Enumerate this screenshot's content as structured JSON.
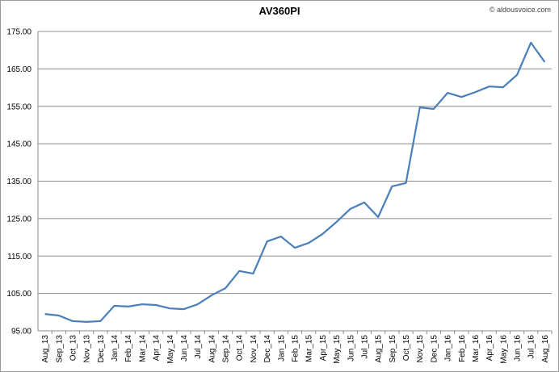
{
  "chart_data": {
    "type": "line",
    "title": "AV360PI",
    "credit": "© aldousvoice.com",
    "categories": [
      "Aug_13",
      "Sep_13",
      "Oct_13",
      "Nov_13",
      "Dec_13",
      "Jan_14",
      "Feb_14",
      "Mar_14",
      "Apr_14",
      "May_14",
      "Jun_14",
      "Jul_14",
      "Aug_14",
      "Sep_14",
      "Oct_14",
      "Nov_14",
      "Dec_14",
      "Jan_15",
      "Feb_15",
      "Mar_15",
      "Apr_15",
      "May_15",
      "Jun_15",
      "Jul_15",
      "Aug_15",
      "Sep_15",
      "Oct_15",
      "Nov_15",
      "Dec_15",
      "Jan_16",
      "Feb_16",
      "Mar_16",
      "Apr_16",
      "May_16",
      "Jun_16",
      "Jul_16",
      "Aug_16"
    ],
    "values": [
      99.5,
      99.1,
      97.6,
      97.4,
      97.6,
      101.7,
      101.5,
      102.1,
      101.9,
      101.0,
      100.8,
      102.1,
      104.5,
      106.4,
      111.0,
      110.3,
      118.9,
      120.2,
      117.2,
      118.5,
      120.9,
      124.1,
      127.6,
      129.3,
      125.4,
      133.6,
      134.5,
      154.7,
      154.3,
      158.6,
      157.5,
      158.8,
      160.3,
      160.1,
      163.4,
      172.0,
      166.8
    ],
    "color": "#4a7ebb",
    "ylim": [
      95,
      175
    ],
    "yticks": [
      {
        "value": 95,
        "label": "95.00"
      },
      {
        "value": 105,
        "label": "105.00"
      },
      {
        "value": 115,
        "label": "115.00"
      },
      {
        "value": 125,
        "label": "125.00"
      },
      {
        "value": 135,
        "label": "135.00"
      },
      {
        "value": 145,
        "label": "145.00"
      },
      {
        "value": 155,
        "label": "155.00"
      },
      {
        "value": 165,
        "label": "165.00"
      },
      {
        "value": 175,
        "label": "175.00"
      }
    ],
    "grid": true
  }
}
